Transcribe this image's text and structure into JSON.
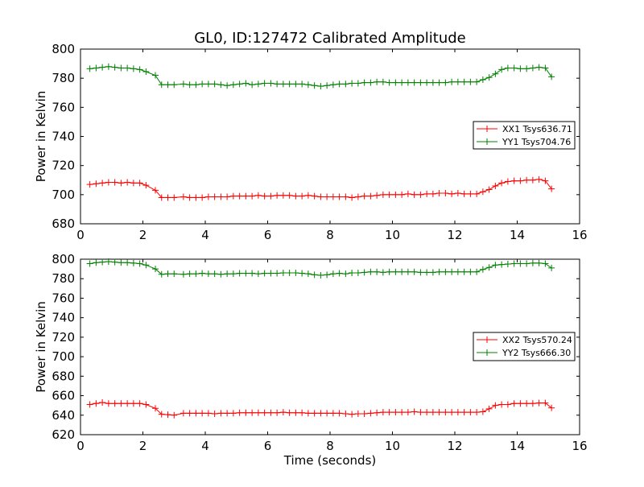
{
  "colors": {
    "xx": "#ff0000",
    "yy": "#008000",
    "axis": "#000000",
    "background": "#ffffff"
  },
  "chart_data": [
    {
      "type": "line",
      "title": "GL0, ID:127472 Calibrated Amplitude",
      "xlabel": "",
      "ylabel": "Power in Kelvin",
      "xlim": [
        0,
        16
      ],
      "ylim": [
        680,
        800
      ],
      "xticks": [
        0,
        2,
        4,
        6,
        8,
        10,
        12,
        14,
        16
      ],
      "yticks": [
        680,
        700,
        720,
        740,
        760,
        780,
        800
      ],
      "grid": false,
      "legend_position": "right",
      "marker": "plus",
      "x": [
        0.3,
        0.5,
        0.7,
        0.9,
        1.1,
        1.3,
        1.5,
        1.7,
        1.9,
        2.1,
        2.4,
        2.6,
        2.8,
        3.0,
        3.3,
        3.5,
        3.7,
        3.9,
        4.1,
        4.3,
        4.5,
        4.7,
        4.9,
        5.1,
        5.3,
        5.5,
        5.7,
        5.9,
        6.1,
        6.3,
        6.5,
        6.7,
        6.9,
        7.1,
        7.3,
        7.5,
        7.7,
        7.9,
        8.1,
        8.3,
        8.5,
        8.7,
        8.9,
        9.1,
        9.3,
        9.5,
        9.7,
        9.9,
        10.1,
        10.3,
        10.5,
        10.7,
        10.9,
        11.1,
        11.3,
        11.5,
        11.7,
        11.9,
        12.1,
        12.3,
        12.5,
        12.7,
        12.9,
        13.1,
        13.3,
        13.5,
        13.7,
        13.9,
        14.1,
        14.3,
        14.5,
        14.7,
        14.9,
        15.1
      ],
      "series": [
        {
          "name": "XX1 Tsys636.71",
          "color": "#ff0000",
          "values": [
            707,
            707.5,
            708,
            708.5,
            708.5,
            708,
            708.5,
            708,
            708,
            706.5,
            703,
            698,
            698,
            698,
            698.5,
            698,
            698,
            698,
            698.5,
            698.5,
            698.5,
            698.5,
            699,
            699,
            699,
            699,
            699.5,
            699,
            699,
            699.5,
            699.5,
            699.5,
            699,
            699,
            699.5,
            699,
            698.5,
            698.5,
            698.5,
            698.5,
            698.5,
            698,
            698.5,
            699,
            699,
            699.5,
            700,
            700,
            700,
            700,
            700.5,
            700,
            700,
            700.5,
            700.5,
            701,
            701,
            700.5,
            701,
            700.5,
            700.5,
            700.5,
            702,
            703.5,
            706,
            708,
            709,
            709.5,
            709.5,
            710,
            710,
            710.5,
            709.5,
            704
          ]
        },
        {
          "name": "YY1 Tsys704.76",
          "color": "#008000",
          "values": [
            786.5,
            787,
            787.5,
            788,
            787.5,
            787,
            787,
            786.5,
            786,
            784.5,
            782,
            775.5,
            775.5,
            775.5,
            776,
            775.5,
            775.5,
            776,
            776,
            776,
            775.5,
            775,
            775.5,
            776,
            776.5,
            775.5,
            776,
            776.5,
            776.5,
            776,
            776,
            776,
            776,
            776,
            775.5,
            775,
            774.5,
            775,
            775.5,
            776,
            776,
            776.5,
            776.5,
            777,
            777,
            777.5,
            777.5,
            777,
            777,
            777,
            777,
            777,
            777,
            777,
            777,
            777,
            777,
            777.5,
            777.5,
            777.5,
            777.5,
            777.5,
            779,
            780.5,
            783,
            786,
            787,
            787,
            786.5,
            786.5,
            787,
            787.5,
            787,
            781
          ]
        }
      ]
    },
    {
      "type": "line",
      "title": "",
      "xlabel": "Time (seconds)",
      "ylabel": "Power in Kelvin",
      "xlim": [
        0,
        16
      ],
      "ylim": [
        620,
        800
      ],
      "xticks": [
        0,
        2,
        4,
        6,
        8,
        10,
        12,
        14,
        16
      ],
      "yticks": [
        620,
        640,
        660,
        680,
        700,
        720,
        740,
        760,
        780,
        800
      ],
      "grid": false,
      "legend_position": "right",
      "marker": "plus",
      "x": [
        0.3,
        0.5,
        0.7,
        0.9,
        1.1,
        1.3,
        1.5,
        1.7,
        1.9,
        2.1,
        2.4,
        2.6,
        2.8,
        3.0,
        3.3,
        3.5,
        3.7,
        3.9,
        4.1,
        4.3,
        4.5,
        4.7,
        4.9,
        5.1,
        5.3,
        5.5,
        5.7,
        5.9,
        6.1,
        6.3,
        6.5,
        6.7,
        6.9,
        7.1,
        7.3,
        7.5,
        7.7,
        7.9,
        8.1,
        8.3,
        8.5,
        8.7,
        8.9,
        9.1,
        9.3,
        9.5,
        9.7,
        9.9,
        10.1,
        10.3,
        10.5,
        10.7,
        10.9,
        11.1,
        11.3,
        11.5,
        11.7,
        11.9,
        12.1,
        12.3,
        12.5,
        12.7,
        12.9,
        13.1,
        13.3,
        13.5,
        13.7,
        13.9,
        14.1,
        14.3,
        14.5,
        14.7,
        14.9,
        15.1
      ],
      "series": [
        {
          "name": "XX2 Tsys570.24",
          "color": "#ff0000",
          "values": [
            651,
            652,
            653,
            652,
            652,
            652,
            652,
            652,
            652,
            651,
            647,
            641,
            640.5,
            640,
            642,
            642,
            642,
            642,
            642,
            641.5,
            642,
            642,
            642,
            642.5,
            642.5,
            642.5,
            642.5,
            642.5,
            642.5,
            642.5,
            643,
            642.5,
            642.5,
            642.5,
            642,
            642,
            642,
            642,
            642,
            642,
            641.5,
            641,
            641.5,
            641.5,
            642,
            642.5,
            643,
            643,
            643,
            643,
            643,
            643.5,
            643,
            643,
            643,
            643,
            643,
            643,
            643,
            643,
            643,
            643,
            643.5,
            646.5,
            650,
            651,
            651,
            652,
            652,
            652,
            652,
            652.5,
            652.5,
            647.5
          ]
        },
        {
          "name": "YY2 Tsys666.30",
          "color": "#008000",
          "values": [
            795.5,
            796.5,
            797,
            797.5,
            797,
            796.5,
            796.5,
            796,
            795.5,
            794,
            790,
            784.5,
            785,
            785,
            784.5,
            785,
            785,
            785.5,
            785,
            785,
            784.5,
            785,
            785,
            785.5,
            785.5,
            785.5,
            785,
            785.5,
            785.5,
            785.5,
            786,
            786,
            786,
            785.5,
            785,
            784,
            783.5,
            784,
            785,
            785.5,
            785,
            786,
            786,
            786.5,
            787,
            787,
            786.5,
            787,
            787,
            787,
            787,
            787,
            786.5,
            786.5,
            786.5,
            787,
            787,
            787,
            787,
            787,
            787,
            787,
            789.5,
            791.5,
            794,
            794.5,
            795,
            795.5,
            795.5,
            795.5,
            796,
            796,
            795.5,
            791
          ]
        }
      ]
    }
  ]
}
